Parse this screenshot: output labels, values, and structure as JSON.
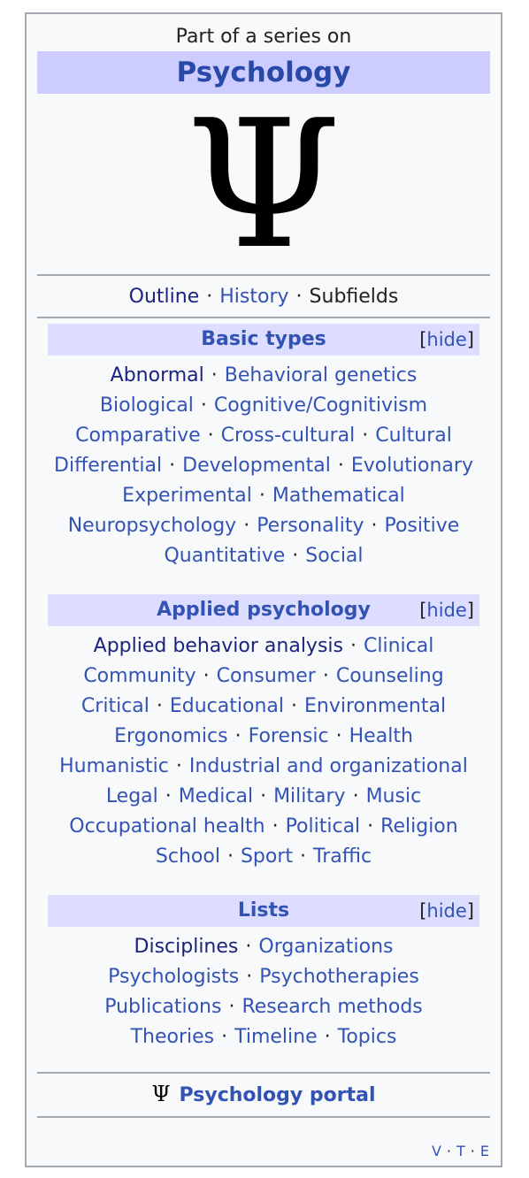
{
  "header": {
    "above": "Part of a series on",
    "title": "Psychology",
    "symbol": "Ψ"
  },
  "top_links": {
    "outline": "Outline",
    "history": "History",
    "subfields": "Subfields"
  },
  "hide_label": "hide",
  "sections": {
    "basic": {
      "title": "Basic types",
      "lines": [
        [
          {
            "t": "Abnormal",
            "v": true
          },
          {
            "t": "Behavioral genetics"
          }
        ],
        [
          {
            "t": "Biological"
          },
          {
            "t": "Cognitive/Cognitivism"
          }
        ],
        [
          {
            "t": "Comparative"
          },
          {
            "t": "Cross-cultural"
          },
          {
            "t": "Cultural"
          }
        ],
        [
          {
            "t": "Differential"
          },
          {
            "t": "Developmental"
          },
          {
            "t": "Evolutionary"
          }
        ],
        [
          {
            "t": "Experimental"
          },
          {
            "t": "Mathematical"
          }
        ],
        [
          {
            "t": "Neuropsychology"
          },
          {
            "t": "Personality"
          },
          {
            "t": "Positive"
          }
        ],
        [
          {
            "t": "Quantitative"
          },
          {
            "t": "Social"
          }
        ]
      ]
    },
    "applied": {
      "title": "Applied psychology",
      "lines": [
        [
          {
            "t": "Applied behavior analysis",
            "v": true
          },
          {
            "t": "Clinical"
          }
        ],
        [
          {
            "t": "Community"
          },
          {
            "t": "Consumer"
          },
          {
            "t": "Counseling"
          }
        ],
        [
          {
            "t": "Critical"
          },
          {
            "t": "Educational"
          },
          {
            "t": "Environmental"
          }
        ],
        [
          {
            "t": "Ergonomics"
          },
          {
            "t": "Forensic"
          },
          {
            "t": "Health"
          }
        ],
        [
          {
            "t": "Humanistic"
          },
          {
            "t": "Industrial and organizational"
          }
        ],
        [
          {
            "t": "Legal"
          },
          {
            "t": "Medical"
          },
          {
            "t": "Military"
          },
          {
            "t": "Music"
          }
        ],
        [
          {
            "t": "Occupational health"
          },
          {
            "t": "Political"
          },
          {
            "t": "Religion"
          }
        ],
        [
          {
            "t": "School"
          },
          {
            "t": "Sport"
          },
          {
            "t": "Traffic"
          }
        ]
      ]
    },
    "lists": {
      "title": "Lists",
      "lines": [
        [
          {
            "t": "Disciplines",
            "v": true
          },
          {
            "t": "Organizations"
          }
        ],
        [
          {
            "t": "Psychologists"
          },
          {
            "t": "Psychotherapies"
          }
        ],
        [
          {
            "t": "Publications"
          },
          {
            "t": "Research methods"
          }
        ],
        [
          {
            "t": "Theories"
          },
          {
            "t": "Timeline"
          },
          {
            "t": "Topics"
          }
        ]
      ]
    }
  },
  "portal": {
    "symbol": "Ψ",
    "label": "Psychology portal"
  },
  "vte": [
    "V",
    "T",
    "E"
  ]
}
